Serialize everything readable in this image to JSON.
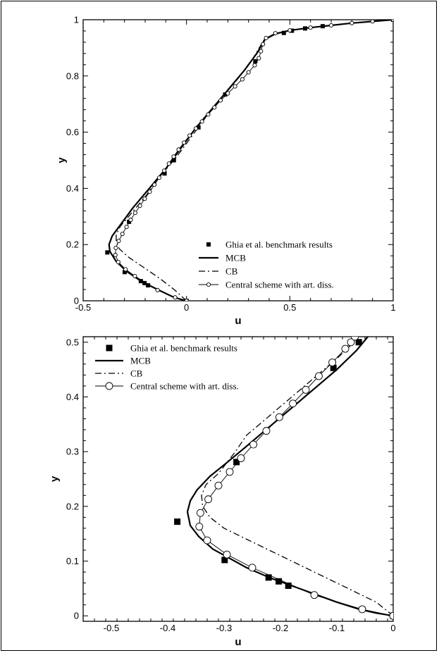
{
  "chart_data": [
    {
      "type": "line",
      "xlabel": "u",
      "ylabel": "y",
      "xlim": [
        -0.5,
        1
      ],
      "ylim": [
        0,
        1
      ],
      "xticks": [
        -0.5,
        0,
        0.5,
        1
      ],
      "xtick_labels": [
        "-0.5",
        "0",
        "0.5",
        "1"
      ],
      "yticks": [
        0,
        0.2,
        0.4,
        0.6,
        0.8,
        1
      ],
      "ytick_labels": [
        "0",
        "0.2",
        "0.4",
        "0.6",
        "0.8",
        "1"
      ],
      "legend_position": "bottom-right",
      "legend": [
        "Ghia et al. benchmark results",
        "MCB",
        "CB",
        "Central scheme with art. diss."
      ],
      "series": [
        {
          "name": "Ghia et al. benchmark results",
          "style": "markers-square",
          "points": [
            [
              0,
              0
            ],
            [
              -0.186,
              0.055
            ],
            [
              -0.203,
              0.063
            ],
            [
              -0.221,
              0.07
            ],
            [
              -0.299,
              0.102
            ],
            [
              -0.383,
              0.172
            ],
            [
              -0.278,
              0.281
            ],
            [
              -0.106,
              0.453
            ],
            [
              -0.061,
              0.5
            ],
            [
              0.058,
              0.617
            ],
            [
              0.187,
              0.734
            ],
            [
              0.333,
              0.852
            ],
            [
              0.471,
              0.953
            ],
            [
              0.51,
              0.961
            ],
            [
              0.574,
              0.969
            ],
            [
              0.659,
              0.977
            ],
            [
              1,
              1
            ]
          ]
        },
        {
          "name": "MCB",
          "style": "solid-thick",
          "points": [
            [
              0,
              0
            ],
            [
              -0.06,
              0.012
            ],
            [
              -0.14,
              0.04
            ],
            [
              -0.22,
              0.07
            ],
            [
              -0.29,
              0.105
            ],
            [
              -0.34,
              0.14
            ],
            [
              -0.37,
              0.175
            ],
            [
              -0.375,
              0.2
            ],
            [
              -0.36,
              0.23
            ],
            [
              -0.32,
              0.27
            ],
            [
              -0.26,
              0.33
            ],
            [
              -0.18,
              0.4
            ],
            [
              -0.1,
              0.47
            ],
            [
              -0.03,
              0.54
            ],
            [
              0.04,
              0.61
            ],
            [
              0.12,
              0.68
            ],
            [
              0.2,
              0.75
            ],
            [
              0.28,
              0.82
            ],
            [
              0.34,
              0.88
            ],
            [
              0.38,
              0.93
            ],
            [
              0.43,
              0.95
            ],
            [
              0.5,
              0.962
            ],
            [
              0.6,
              0.972
            ],
            [
              0.7,
              0.98
            ],
            [
              0.8,
              0.988
            ],
            [
              0.9,
              0.994
            ],
            [
              1,
              1
            ]
          ]
        },
        {
          "name": "CB",
          "style": "dashdot",
          "points": [
            [
              0,
              0
            ],
            [
              -0.06,
              0.04
            ],
            [
              -0.13,
              0.08
            ],
            [
              -0.21,
              0.12
            ],
            [
              -0.28,
              0.155
            ],
            [
              -0.325,
              0.185
            ],
            [
              -0.34,
              0.21
            ],
            [
              -0.34,
              0.235
            ],
            [
              -0.32,
              0.265
            ],
            [
              -0.28,
              0.3
            ],
            [
              -0.2,
              0.37
            ],
            [
              -0.12,
              0.45
            ],
            [
              -0.05,
              0.51
            ],
            [
              0.03,
              0.59
            ],
            [
              0.1,
              0.66
            ],
            [
              0.18,
              0.73
            ],
            [
              0.26,
              0.8
            ],
            [
              0.32,
              0.86
            ],
            [
              0.36,
              0.91
            ],
            [
              0.38,
              0.935
            ]
          ]
        },
        {
          "name": "Central scheme with art. diss.",
          "style": "solid-circles",
          "points": [
            [
              0,
              0
            ],
            [
              -0.055,
              0.012
            ],
            [
              -0.14,
              0.038
            ],
            [
              -0.25,
              0.088
            ],
            [
              -0.295,
              0.112
            ],
            [
              -0.33,
              0.138
            ],
            [
              -0.344,
              0.163
            ],
            [
              -0.342,
              0.188
            ],
            [
              -0.328,
              0.213
            ],
            [
              -0.31,
              0.238
            ],
            [
              -0.29,
              0.263
            ],
            [
              -0.27,
              0.288
            ],
            [
              -0.248,
              0.313
            ],
            [
              -0.225,
              0.338
            ],
            [
              -0.202,
              0.363
            ],
            [
              -0.178,
              0.388
            ],
            [
              -0.155,
              0.413
            ],
            [
              -0.132,
              0.438
            ],
            [
              -0.108,
              0.463
            ],
            [
              -0.085,
              0.488
            ],
            [
              -0.062,
              0.513
            ],
            [
              -0.038,
              0.538
            ],
            [
              -0.012,
              0.563
            ],
            [
              0.015,
              0.588
            ],
            [
              0.045,
              0.613
            ],
            [
              0.075,
              0.638
            ],
            [
              0.105,
              0.663
            ],
            [
              0.135,
              0.688
            ],
            [
              0.165,
              0.713
            ],
            [
              0.2,
              0.738
            ],
            [
              0.235,
              0.763
            ],
            [
              0.27,
              0.788
            ],
            [
              0.3,
              0.813
            ],
            [
              0.33,
              0.838
            ],
            [
              0.35,
              0.863
            ],
            [
              0.36,
              0.888
            ],
            [
              0.37,
              0.913
            ],
            [
              0.385,
              0.935
            ],
            [
              0.43,
              0.952
            ],
            [
              0.5,
              0.962
            ],
            [
              0.6,
              0.972
            ],
            [
              0.7,
              0.98
            ],
            [
              0.8,
              0.988
            ],
            [
              0.9,
              0.994
            ],
            [
              1,
              1
            ]
          ]
        }
      ]
    },
    {
      "type": "line",
      "xlabel": "u",
      "ylabel": "y",
      "xlim": [
        -0.55,
        0
      ],
      "ylim": [
        -0.01,
        0.51
      ],
      "xticks": [
        -0.5,
        -0.4,
        -0.3,
        -0.2,
        -0.1,
        0
      ],
      "xtick_labels": [
        "-0.5",
        "-0.4",
        "-0.3",
        "-0.2",
        "-0.1",
        "0"
      ],
      "yticks": [
        0,
        0.1,
        0.2,
        0.3,
        0.4,
        0.5
      ],
      "ytick_labels": [
        "0",
        "0.1",
        "0.2",
        "0.3",
        "0.4",
        "0.5"
      ],
      "legend_position": "top-left",
      "legend": [
        "Ghia et al. benchmark results",
        "MCB",
        "CB",
        "Central scheme with art. diss."
      ],
      "series": [
        {
          "name": "Ghia et al. benchmark results",
          "style": "markers-square",
          "points": [
            [
              0,
              0
            ],
            [
              -0.186,
              0.055
            ],
            [
              -0.203,
              0.063
            ],
            [
              -0.221,
              0.07
            ],
            [
              -0.299,
              0.102
            ],
            [
              -0.383,
              0.172
            ],
            [
              -0.278,
              0.281
            ],
            [
              -0.106,
              0.453
            ],
            [
              -0.061,
              0.5
            ]
          ]
        },
        {
          "name": "MCB",
          "style": "solid-thick",
          "points": [
            [
              0,
              0
            ],
            [
              -0.03,
              0.005
            ],
            [
              -0.06,
              0.012
            ],
            [
              -0.1,
              0.025
            ],
            [
              -0.14,
              0.04
            ],
            [
              -0.18,
              0.055
            ],
            [
              -0.22,
              0.07
            ],
            [
              -0.26,
              0.088
            ],
            [
              -0.29,
              0.105
            ],
            [
              -0.32,
              0.122
            ],
            [
              -0.345,
              0.145
            ],
            [
              -0.36,
              0.165
            ],
            [
              -0.365,
              0.19
            ],
            [
              -0.36,
              0.21
            ],
            [
              -0.348,
              0.23
            ],
            [
              -0.325,
              0.255
            ],
            [
              -0.295,
              0.28
            ],
            [
              -0.26,
              0.31
            ],
            [
              -0.22,
              0.345
            ],
            [
              -0.18,
              0.38
            ],
            [
              -0.14,
              0.415
            ],
            [
              -0.1,
              0.45
            ],
            [
              -0.065,
              0.485
            ],
            [
              -0.045,
              0.51
            ]
          ]
        },
        {
          "name": "CB",
          "style": "dashdot",
          "points": [
            [
              0,
              0
            ],
            [
              -0.03,
              0.025
            ],
            [
              -0.06,
              0.04
            ],
            [
              -0.1,
              0.06
            ],
            [
              -0.14,
              0.08
            ],
            [
              -0.18,
              0.1
            ],
            [
              -0.22,
              0.12
            ],
            [
              -0.26,
              0.14
            ],
            [
              -0.3,
              0.16
            ],
            [
              -0.325,
              0.18
            ],
            [
              -0.338,
              0.2
            ],
            [
              -0.34,
              0.22
            ],
            [
              -0.332,
              0.24
            ],
            [
              -0.31,
              0.26
            ],
            [
              -0.28,
              0.3
            ],
            [
              -0.26,
              0.33
            ],
            [
              -0.22,
              0.365
            ],
            [
              -0.18,
              0.4
            ],
            [
              -0.14,
              0.435
            ],
            [
              -0.1,
              0.47
            ],
            [
              -0.07,
              0.5
            ],
            [
              -0.062,
              0.51
            ]
          ]
        },
        {
          "name": "Central scheme with art. diss.",
          "style": "solid-circles",
          "points": [
            [
              0,
              0
            ],
            [
              -0.055,
              0.012
            ],
            [
              -0.14,
              0.038
            ],
            [
              -0.25,
              0.088
            ],
            [
              -0.295,
              0.112
            ],
            [
              -0.33,
              0.138
            ],
            [
              -0.344,
              0.163
            ],
            [
              -0.342,
              0.188
            ],
            [
              -0.328,
              0.213
            ],
            [
              -0.31,
              0.238
            ],
            [
              -0.29,
              0.263
            ],
            [
              -0.27,
              0.288
            ],
            [
              -0.248,
              0.313
            ],
            [
              -0.225,
              0.338
            ],
            [
              -0.202,
              0.363
            ],
            [
              -0.178,
              0.388
            ],
            [
              -0.155,
              0.413
            ],
            [
              -0.132,
              0.438
            ],
            [
              -0.108,
              0.463
            ],
            [
              -0.085,
              0.488
            ],
            [
              -0.075,
              0.5
            ],
            [
              -0.068,
              0.51
            ]
          ]
        }
      ]
    }
  ]
}
